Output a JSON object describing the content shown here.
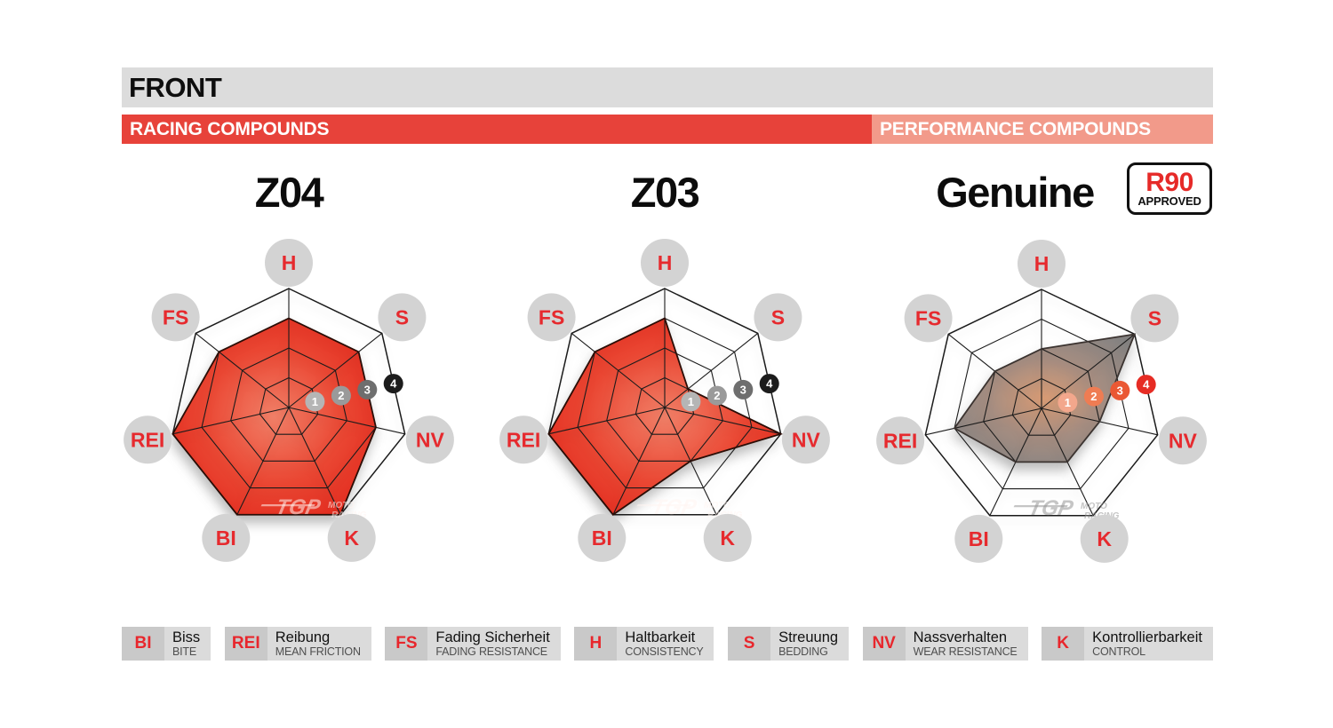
{
  "header": {
    "title": "FRONT",
    "racing_band": "RACING COMPOUNDS",
    "performance_band": "PERFORMANCE COMPOUNDS"
  },
  "genuine_badge": {
    "top": "R90",
    "bottom": "APPROVED"
  },
  "watermark": {
    "logo": "TGP",
    "line1": "MOTO",
    "line2": "RACING"
  },
  "axes": [
    "H",
    "S",
    "NV",
    "K",
    "BI",
    "REI",
    "FS"
  ],
  "scale_labels": [
    "1",
    "2",
    "3",
    "4"
  ],
  "chart_data": [
    {
      "type": "radar",
      "title": "Z04",
      "group": "racing",
      "categories": [
        "H",
        "S",
        "NV",
        "K",
        "BI",
        "REI",
        "FS"
      ],
      "values": [
        3,
        3,
        3,
        4,
        4,
        4,
        3
      ],
      "max": 4,
      "rings": [
        1,
        2,
        3,
        4
      ],
      "legend_position": "none"
    },
    {
      "type": "radar",
      "title": "Z03",
      "group": "racing",
      "categories": [
        "H",
        "S",
        "NV",
        "K",
        "BI",
        "REI",
        "FS"
      ],
      "values": [
        3,
        1,
        4,
        2,
        4,
        4,
        3
      ],
      "max": 4,
      "rings": [
        1,
        2,
        3,
        4
      ],
      "legend_position": "none"
    },
    {
      "type": "radar",
      "title": "Genuine",
      "group": "performance",
      "categories": [
        "H",
        "S",
        "NV",
        "K",
        "BI",
        "REI",
        "FS"
      ],
      "values": [
        2,
        4,
        2,
        2,
        2,
        3,
        2
      ],
      "max": 4,
      "rings": [
        1,
        2,
        3,
        4
      ],
      "legend_position": "none"
    }
  ],
  "radar_style": {
    "racing": {
      "gradient": [
        [
          "0%",
          "#F28068"
        ],
        [
          "55%",
          "#EA4733"
        ],
        [
          "100%",
          "#E2291D"
        ]
      ],
      "stroke": "#2b0d06",
      "scale_colors": [
        "#b5b5b5",
        "#9a9a9a",
        "#6e6e6e",
        "#1c1c1c"
      ],
      "watermark_color": "rgba(255,244,240,0.55)"
    },
    "performance": {
      "gradient": [
        [
          "0%",
          "#D99C75"
        ],
        [
          "50%",
          "#A58D81"
        ],
        [
          "100%",
          "#858382"
        ]
      ],
      "stroke": "#3b3330",
      "scale_colors": [
        "#f3a78c",
        "#ef7c53",
        "#ea5834",
        "#e62c24"
      ],
      "watermark_color": "rgba(150,150,150,0.55)"
    },
    "grid_color": "#1b1b1b",
    "axis_circle_fill": "#d3d3d3",
    "axis_text_color": "#e62a2e",
    "scale_text_color": "#ffffff"
  },
  "colors": {
    "front_bar_bg": "#dcdcdc",
    "racing_band_bg": "#e7423a",
    "performance_band_bg": "#f29a8a",
    "page_bg": "#ffffff"
  },
  "legend": [
    {
      "abbr": "BI",
      "de": "Biss",
      "en": "BITE"
    },
    {
      "abbr": "REI",
      "de": "Reibung",
      "en": "MEAN FRICTION"
    },
    {
      "abbr": "FS",
      "de": "Fading Sicherheit",
      "en": "FADING RESISTANCE"
    },
    {
      "abbr": "H",
      "de": "Haltbarkeit",
      "en": "CONSISTENCY"
    },
    {
      "abbr": "S",
      "de": "Streuung",
      "en": "BEDDING"
    },
    {
      "abbr": "NV",
      "de": "Nassverhalten",
      "en": "WEAR RESISTANCE"
    },
    {
      "abbr": "K",
      "de": "Kontrollierbarkeit",
      "en": "CONTROL"
    }
  ]
}
